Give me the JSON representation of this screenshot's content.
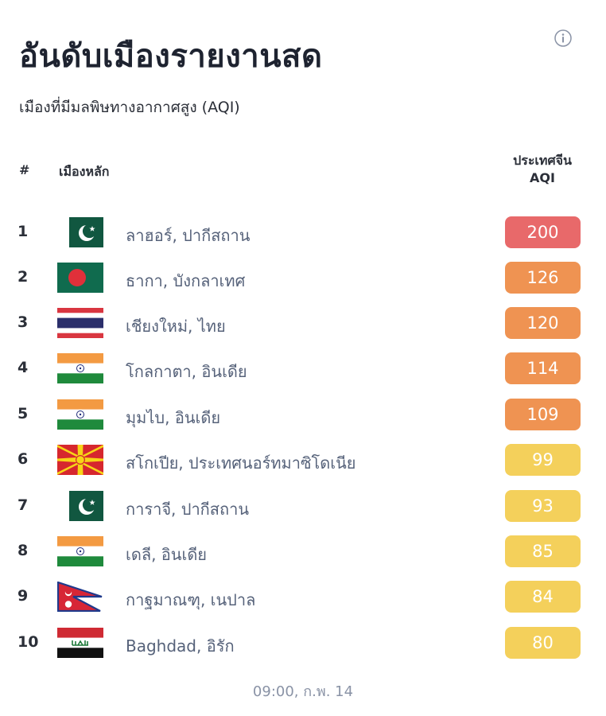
{
  "header": {
    "title": "อันดับเมืองรายงานสด",
    "subtitle": "เมืองที่มีมลพิษทางอากาศสูง (AQI)",
    "info_icon": "info-circle-icon"
  },
  "table": {
    "col_rank": "#",
    "col_city": "เมืองหลัก",
    "col_aqi_line1": "ประเทศจีน",
    "col_aqi_line2": "AQI",
    "rows": [
      {
        "rank": "1",
        "flag": "pakistan-flag-icon",
        "city": "ลาฮอร์, ปากีสถาน",
        "aqi": "200",
        "color": "#e8696a"
      },
      {
        "rank": "2",
        "flag": "bangladesh-flag-icon",
        "city": "ธากา, บังกลาเทศ",
        "aqi": "126",
        "color": "#ef9352"
      },
      {
        "rank": "3",
        "flag": "thailand-flag-icon",
        "city": "เชียงใหม่, ไทย",
        "aqi": "120",
        "color": "#ef9352"
      },
      {
        "rank": "4",
        "flag": "india-flag-icon",
        "city": "โกลกาตา, อินเดีย",
        "aqi": "114",
        "color": "#ef9352"
      },
      {
        "rank": "5",
        "flag": "india-flag-icon",
        "city": "มุมไบ, อินเดีย",
        "aqi": "109",
        "color": "#ef9352"
      },
      {
        "rank": "6",
        "flag": "north-macedonia-flag-icon",
        "city": "สโกเปีย, ประเทศนอร์ทมาซิโดเนีย",
        "aqi": "99",
        "color": "#f4d05b"
      },
      {
        "rank": "7",
        "flag": "pakistan-flag-icon",
        "city": "การาจี, ปากีสถาน",
        "aqi": "93",
        "color": "#f4d05b"
      },
      {
        "rank": "8",
        "flag": "india-flag-icon",
        "city": "เดลี, อินเดีย",
        "aqi": "85",
        "color": "#f4d05b"
      },
      {
        "rank": "9",
        "flag": "nepal-flag-icon",
        "city": "กาฐมาณฑุ, เนปาล",
        "aqi": "84",
        "color": "#f4d05b"
      },
      {
        "rank": "10",
        "flag": "iraq-flag-icon",
        "city": "Baghdad, อิรัก",
        "aqi": "80",
        "color": "#f4d05b"
      }
    ]
  },
  "footer": {
    "timestamp": "09:00, ก.พ. 14"
  }
}
